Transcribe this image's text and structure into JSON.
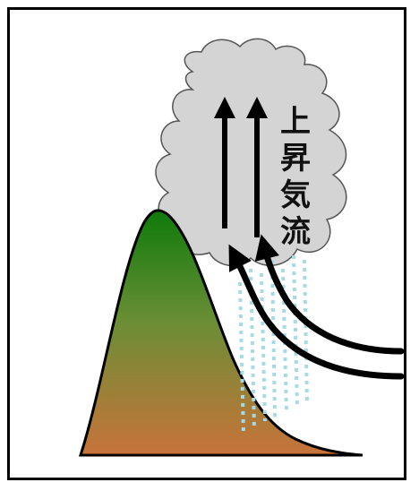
{
  "label": {
    "chars": [
      "上",
      "昇",
      "気",
      "流"
    ]
  },
  "colors": {
    "border": "#000000",
    "cloud_fill": "#d3d3d3",
    "cloud_stroke": "#555555",
    "mountain_top": "#1a7a12",
    "mountain_bottom": "#c47a3e",
    "arrow": "#000000",
    "rain": "#9fd9e6"
  }
}
